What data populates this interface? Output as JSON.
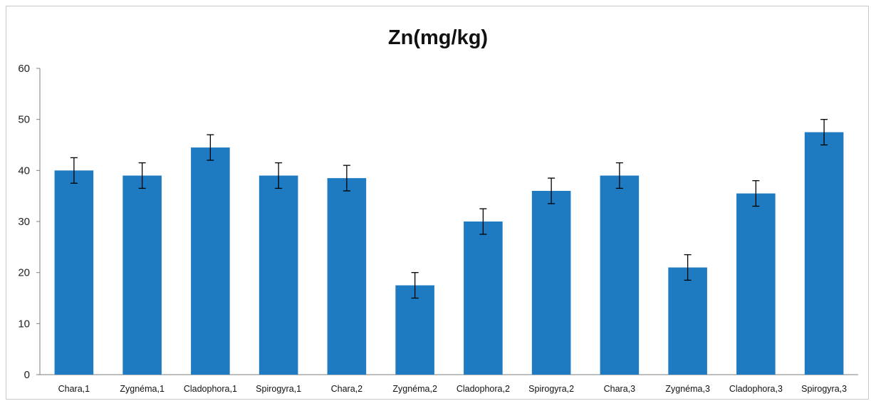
{
  "chart_data": {
    "type": "bar",
    "title": "Zn(mg/kg)",
    "xlabel": "",
    "ylabel": "",
    "categories": [
      "Chara,1",
      "Zygnéma,1",
      "Cladophora,1",
      "Spirogyra,1",
      "Chara,2",
      "Zygnéma,2",
      "Cladophora,2",
      "Spirogyra,2",
      "Chara,3",
      "Zygnéma,3",
      "Cladophora,3",
      "Spirogyra,3"
    ],
    "values": [
      40,
      39,
      44.5,
      39,
      38.5,
      17.5,
      30,
      36,
      39,
      21,
      35.5,
      47.5
    ],
    "error": [
      2.5,
      2.5,
      2.5,
      2.5,
      2.5,
      2.5,
      2.5,
      2.5,
      2.5,
      2.5,
      2.5,
      2.5
    ],
    "ylim": [
      0,
      60
    ],
    "yticks": [
      0,
      10,
      20,
      30,
      40,
      50,
      60
    ],
    "grid": false,
    "legend": "none",
    "bar_color": "#1f7bc1",
    "error_bar_color": "#000000"
  }
}
